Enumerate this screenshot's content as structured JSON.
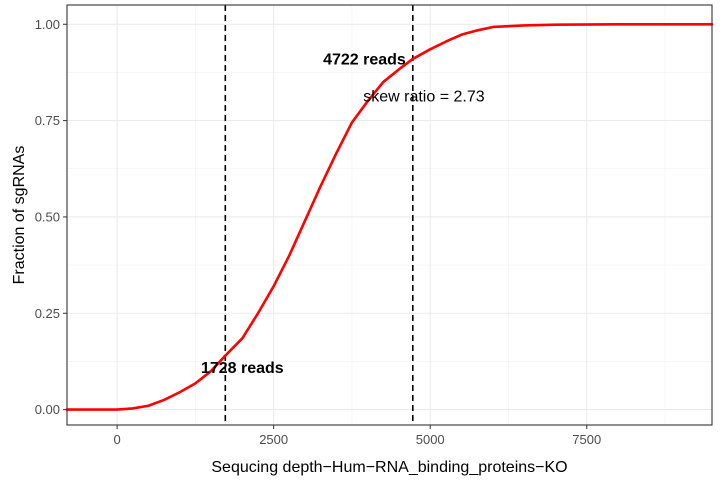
{
  "chart_data": {
    "type": "line",
    "xlabel": "Sequcing depth−Hum−RNA_binding_proteins−KO",
    "ylabel": "Fraction of sgRNAs",
    "xlim": [
      -800,
      9500
    ],
    "ylim": [
      -0.04,
      1.05
    ],
    "xticks": [
      0,
      2500,
      5000,
      7500
    ],
    "xtick_labels": [
      "0",
      "2500",
      "5000",
      "7500"
    ],
    "yticks": [
      0,
      0.25,
      0.5,
      0.75,
      1.0
    ],
    "ytick_labels": [
      "0.00",
      "0.25",
      "0.50",
      "0.75",
      "1.00"
    ],
    "grid": true,
    "legend": "none",
    "series": [
      {
        "color": "#ff0000",
        "x": [
          -800,
          0,
          250,
          500,
          750,
          1000,
          1250,
          1500,
          1728,
          2000,
          2250,
          2500,
          2750,
          3000,
          3250,
          3500,
          3750,
          4000,
          4250,
          4500,
          4722,
          5000,
          5250,
          5500,
          5750,
          6000,
          6500,
          7000,
          8000,
          9500
        ],
        "y": [
          0,
          0,
          0.003,
          0.01,
          0.025,
          0.045,
          0.068,
          0.1,
          0.14,
          0.185,
          0.25,
          0.32,
          0.4,
          0.49,
          0.58,
          0.665,
          0.745,
          0.8,
          0.85,
          0.883,
          0.91,
          0.935,
          0.955,
          0.973,
          0.984,
          0.993,
          0.997,
          0.999,
          1.0,
          1.0
        ]
      }
    ],
    "vlines": [
      {
        "x": 1728,
        "color": "#000000",
        "style": "dashed"
      },
      {
        "x": 4722,
        "color": "#000000",
        "style": "dashed"
      }
    ],
    "annotations": [
      {
        "text": "1728 reads",
        "x": 2000,
        "y": 0.095,
        "bold": true
      },
      {
        "text": "4722 reads",
        "x": 3950,
        "y": 0.895,
        "bold": true
      },
      {
        "text": "skew ratio = 2.73",
        "x": 4900,
        "y": 0.8,
        "bold": false
      }
    ]
  }
}
